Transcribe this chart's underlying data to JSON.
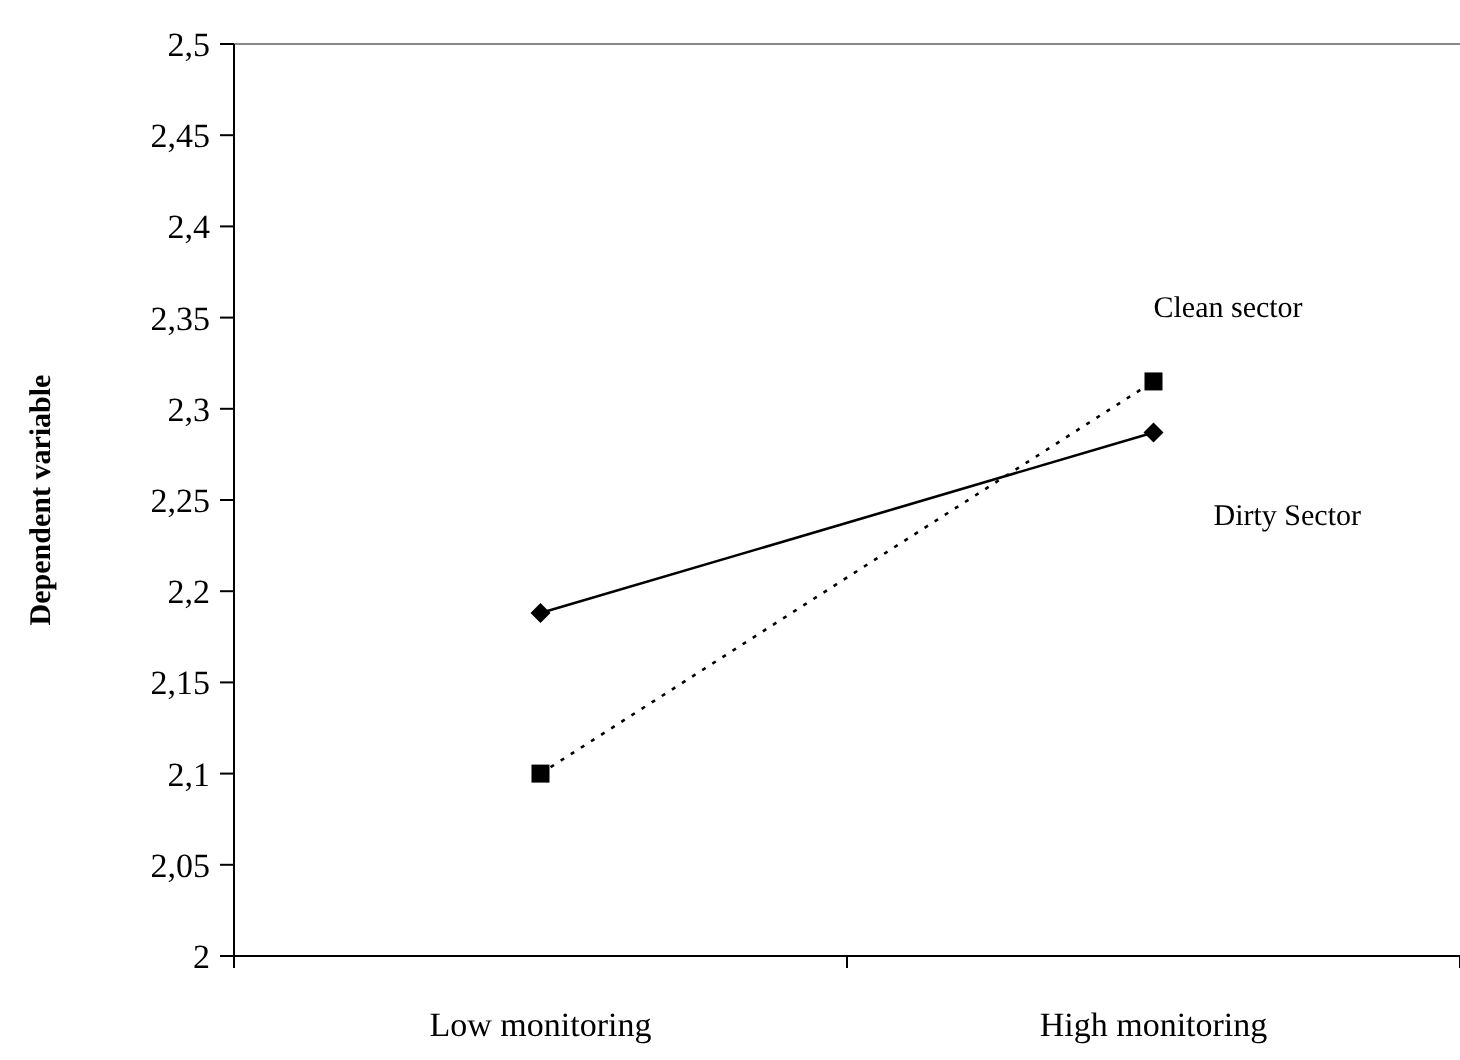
{
  "chart_data": {
    "type": "line",
    "ylabel": "Dependent variable",
    "categories": [
      "Low monitoring",
      "High monitoring"
    ],
    "series": [
      {
        "name": "Dirty Sector",
        "color": "#000000",
        "values": [
          2.188,
          2.287
        ],
        "marker": "diamond",
        "line_style": "solid"
      },
      {
        "name": "Clean sector",
        "color": "#000000",
        "values": [
          2.1,
          2.315
        ],
        "marker": "square",
        "line_style": "dotted"
      }
    ],
    "ylim": [
      2,
      2.5
    ],
    "yticks": [
      {
        "value": 2,
        "label": "2"
      },
      {
        "value": 2.05,
        "label": "2,05"
      },
      {
        "value": 2.1,
        "label": "2,1"
      },
      {
        "value": 2.15,
        "label": "2,15"
      },
      {
        "value": 2.2,
        "label": "2,2"
      },
      {
        "value": 2.25,
        "label": "2,25"
      },
      {
        "value": 2.3,
        "label": "2,3"
      },
      {
        "value": 2.35,
        "label": "2,35"
      },
      {
        "value": 2.4,
        "label": "2,4"
      },
      {
        "value": 2.45,
        "label": "2,45"
      },
      {
        "value": 2.5,
        "label": "2,5"
      }
    ],
    "grid": false
  }
}
